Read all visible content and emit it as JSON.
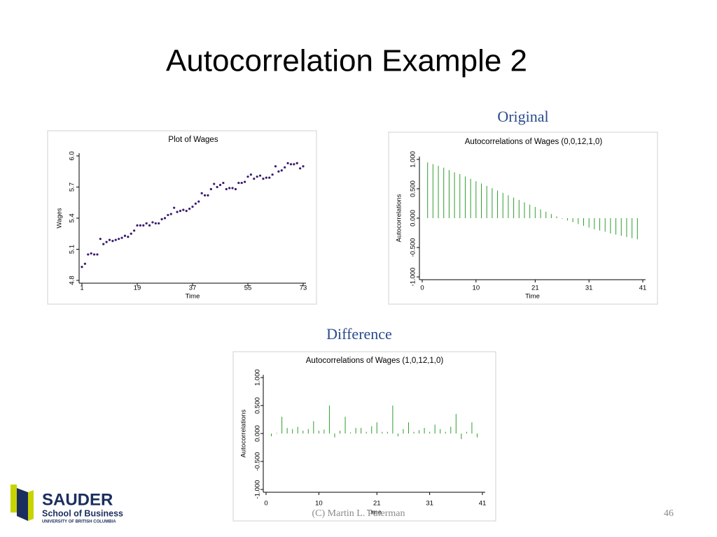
{
  "title": "Autocorrelation Example 2",
  "labels": {
    "original": "Original",
    "difference": "Difference"
  },
  "footer": {
    "credit": "(C) Martin  L. Puterman",
    "page": "46"
  },
  "logo": {
    "name": "SAUDER",
    "school": "School of Business",
    "university": "UNIVERSITY OF BRITISH COLUMBIA"
  },
  "chart_data": [
    {
      "type": "line",
      "title": "Plot of Wages",
      "xlabel": "Time",
      "ylabel": "Wages",
      "line_color": "#c0143c",
      "marker_color": "#3a1a6e",
      "x": [
        1,
        2,
        3,
        4,
        5,
        6,
        7,
        8,
        9,
        10,
        11,
        12,
        13,
        14,
        15,
        16,
        17,
        18,
        19,
        20,
        21,
        22,
        23,
        24,
        25,
        26,
        27,
        28,
        29,
        30,
        31,
        32,
        33,
        34,
        35,
        36,
        37,
        38,
        39,
        40,
        41,
        42,
        43,
        44,
        45,
        46,
        47,
        48,
        49,
        50,
        51,
        52,
        53,
        54,
        55,
        56,
        57,
        58,
        59,
        60,
        61,
        62,
        63,
        64,
        65,
        66,
        67,
        68,
        69,
        70,
        71,
        72,
        73
      ],
      "values": [
        4.93,
        4.96,
        5.05,
        5.06,
        5.05,
        5.05,
        5.2,
        5.15,
        5.17,
        5.19,
        5.18,
        5.19,
        5.2,
        5.21,
        5.23,
        5.22,
        5.25,
        5.28,
        5.33,
        5.33,
        5.33,
        5.35,
        5.33,
        5.36,
        5.35,
        5.35,
        5.39,
        5.4,
        5.43,
        5.44,
        5.5,
        5.46,
        5.47,
        5.48,
        5.47,
        5.49,
        5.51,
        5.54,
        5.56,
        5.64,
        5.62,
        5.62,
        5.68,
        5.73,
        5.7,
        5.72,
        5.74,
        5.68,
        5.69,
        5.69,
        5.68,
        5.74,
        5.74,
        5.75,
        5.8,
        5.82,
        5.78,
        5.8,
        5.81,
        5.78,
        5.79,
        5.79,
        5.82,
        5.9,
        5.85,
        5.86,
        5.89,
        5.93,
        5.92,
        5.92,
        5.93,
        5.88,
        5.9
      ],
      "xlim": [
        1,
        73
      ],
      "xticks": [
        1,
        19,
        37,
        55,
        73
      ],
      "ylim": [
        4.8,
        6.0
      ],
      "yticks": [
        4.8,
        5.1,
        5.4,
        5.7,
        {
          "value": 6,
          "label": "6.0"
        }
      ]
    },
    {
      "type": "bar",
      "title": "Autocorrelations of Wages (0,0,12,1,0)",
      "xlabel": "Time",
      "ylabel": "Autocorrelations",
      "color": "#2e9e2e",
      "x": [
        1,
        2,
        3,
        4,
        5,
        6,
        7,
        8,
        9,
        10,
        11,
        12,
        13,
        14,
        15,
        16,
        17,
        18,
        19,
        20,
        21,
        22,
        23,
        24,
        25,
        26,
        27,
        28,
        29,
        30,
        31,
        32,
        33,
        34,
        35,
        36,
        37,
        38,
        39,
        40
      ],
      "values": [
        0.95,
        0.92,
        0.89,
        0.86,
        0.82,
        0.78,
        0.75,
        0.71,
        0.67,
        0.63,
        0.59,
        0.55,
        0.51,
        0.47,
        0.43,
        0.39,
        0.35,
        0.31,
        0.27,
        0.23,
        0.19,
        0.15,
        0.11,
        0.07,
        0.03,
        -0.01,
        -0.04,
        -0.07,
        -0.1,
        -0.13,
        -0.16,
        -0.19,
        -0.21,
        -0.23,
        -0.26,
        -0.28,
        -0.3,
        -0.32,
        -0.34,
        -0.36
      ],
      "xlim": [
        0,
        41
      ],
      "xticks": [
        0,
        10,
        21,
        31,
        41
      ],
      "ylim": [
        -1,
        1
      ],
      "yticks": [
        {
          "value": -1,
          "label": "-1.000"
        },
        {
          "value": -0.5,
          "label": "-0.500"
        },
        {
          "value": 0,
          "label": "0.000"
        },
        {
          "value": 0.5,
          "label": "0.500"
        },
        {
          "value": 1,
          "label": "1.000"
        }
      ]
    },
    {
      "type": "bar",
      "title": "Autocorrelations of Wages (1,0,12,1,0)",
      "xlabel": "Time",
      "ylabel": "Autocorrelations",
      "color": "#2e9e2e",
      "x": [
        1,
        2,
        3,
        4,
        5,
        6,
        7,
        8,
        9,
        10,
        11,
        12,
        13,
        14,
        15,
        16,
        17,
        18,
        19,
        20,
        21,
        22,
        23,
        24,
        25,
        26,
        27,
        28,
        29,
        30,
        31,
        32,
        33,
        34,
        35,
        36,
        37,
        38,
        39,
        40
      ],
      "values": [
        -0.05,
        0.0,
        0.3,
        0.1,
        0.08,
        0.12,
        0.05,
        0.08,
        0.22,
        0.05,
        0.07,
        0.5,
        -0.07,
        0.05,
        0.3,
        0.02,
        0.1,
        0.1,
        0.03,
        0.13,
        0.2,
        0.03,
        0.03,
        0.5,
        -0.05,
        0.08,
        0.2,
        0.03,
        0.06,
        0.1,
        0.03,
        0.16,
        0.08,
        0.03,
        0.12,
        0.35,
        -0.1,
        0.03,
        0.2,
        -0.07
      ],
      "xlim": [
        0,
        41
      ],
      "xticks": [
        0,
        10,
        21,
        31,
        41
      ],
      "ylim": [
        -1,
        1
      ],
      "yticks": [
        {
          "value": -1,
          "label": "-1.000"
        },
        {
          "value": -0.5,
          "label": "-0.500"
        },
        {
          "value": 0,
          "label": "0.000"
        },
        {
          "value": 0.5,
          "label": "0.500"
        },
        {
          "value": 1,
          "label": "1.000"
        }
      ]
    }
  ]
}
